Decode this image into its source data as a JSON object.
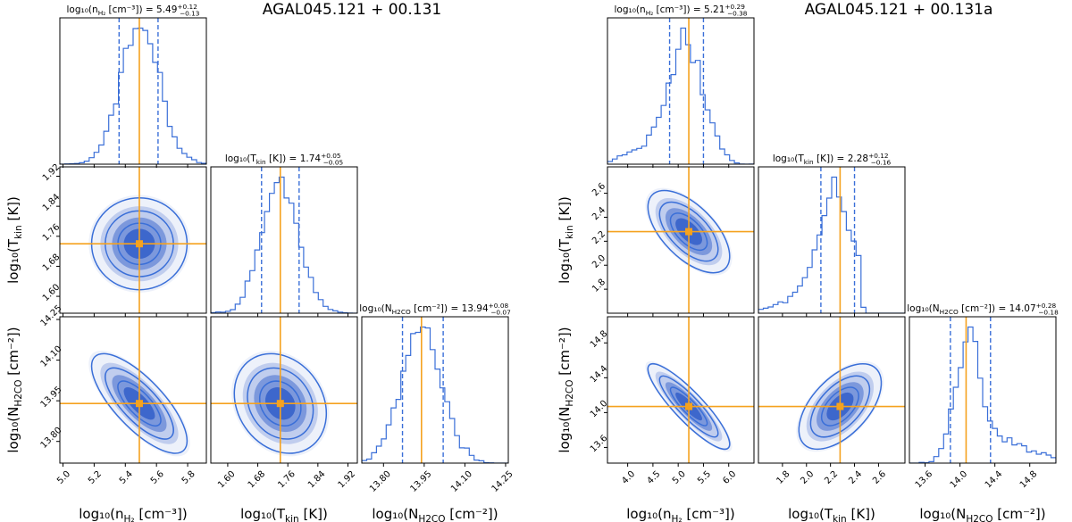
{
  "colors": {
    "hist": "#3a6fd8",
    "truth": "#f5a21f",
    "frame": "#000000",
    "fill_dark": "#1f4fc4"
  },
  "chart_data": [
    {
      "type": "corner",
      "title": "AGAL045.121 + 00.131",
      "params": [
        {
          "name": "log10_n_H2",
          "axis_label": "log₁₀(n_H₂ [cm⁻³])",
          "title": "log₁₀(n_H₂ [cm⁻³]) = 5.49 +0.12 −0.13",
          "title_main": "log₁₀(n",
          "title_sub": "H₂",
          "title_rest": " [cm⁻³]) = 5.49",
          "sup": "+0.12",
          "sub": "−0.13",
          "lab_main": "log₁₀(n",
          "lab_sub": "H₂",
          "lab_rest": " [cm⁻³])",
          "median": 5.49,
          "q16": 5.36,
          "q84": 5.61,
          "sigma": 0.125,
          "range": [
            4.98,
            5.92
          ],
          "ticks": [
            5.0,
            5.2,
            5.4,
            5.6,
            5.8
          ],
          "tick_labels": [
            "5.0",
            "5.2",
            "5.4",
            "5.6",
            "5.8"
          ]
        },
        {
          "name": "log10_T_kin",
          "axis_label": "log₁₀(T_kin [K])",
          "title": "log₁₀(T_kin [K]) = 1.74 +0.05 −0.05",
          "title_main": "log₁₀(T",
          "title_sub": "kin",
          "title_rest": " [K]) = 1.74",
          "sup": "+0.05",
          "sub": "−0.05",
          "lab_main": "log₁₀(T",
          "lab_sub": "kin",
          "lab_rest": " [K])",
          "median": 1.74,
          "q16": 1.69,
          "q84": 1.79,
          "sigma": 0.05,
          "range": [
            1.555,
            1.945
          ],
          "ticks": [
            1.6,
            1.68,
            1.76,
            1.84,
            1.92
          ],
          "tick_labels": [
            "1.60",
            "1.68",
            "1.76",
            "1.84",
            "1.92"
          ]
        },
        {
          "name": "log10_N_H2CO",
          "axis_label": "log₁₀(N_H2CO [cm⁻²])",
          "title": "log₁₀(N_H2CO [cm⁻²]) = 13.94 +0.08 −0.07",
          "title_main": "log₁₀(N",
          "title_sub": "H2CO",
          "title_rest": " [cm⁻²]) = 13.94",
          "sup": "+0.08",
          "sub": "−0.07",
          "lab_main": "log₁₀(N",
          "lab_sub": "H2CO",
          "lab_rest": " [cm⁻²])",
          "median": 13.94,
          "q16": 13.87,
          "q84": 14.02,
          "sigma": 0.075,
          "range": [
            13.72,
            14.26
          ],
          "ticks": [
            13.8,
            13.95,
            14.1,
            14.25
          ],
          "tick_labels": [
            "13.80",
            "13.95",
            "14.10",
            "14.25"
          ]
        }
      ],
      "correlations": {
        "0-1": 0.0,
        "0-2": -0.75,
        "1-2": -0.2
      },
      "truths": [
        5.49,
        1.74,
        13.94
      ]
    },
    {
      "type": "corner",
      "title": "AGAL045.121 + 00.131a",
      "params": [
        {
          "name": "log10_n_H2",
          "axis_label": "log₁₀(n_H₂ [cm⁻³])",
          "title": "log₁₀(n_H₂ [cm⁻³]) = 5.21 +0.29 −0.38",
          "title_main": "log₁₀(n",
          "title_sub": "H₂",
          "title_rest": " [cm⁻³]) = 5.21",
          "sup": "+0.29",
          "sub": "−0.38",
          "lab_main": "log₁₀(n",
          "lab_sub": "H₂",
          "lab_rest": " [cm⁻³])",
          "median": 5.21,
          "q16": 4.83,
          "q84": 5.5,
          "sigma": 0.33,
          "range": [
            3.6,
            6.5
          ],
          "ticks": [
            4.0,
            4.5,
            5.0,
            5.5,
            6.0
          ],
          "tick_labels": [
            "4.0",
            "4.5",
            "5.0",
            "5.5",
            "6.0"
          ]
        },
        {
          "name": "log10_T_kin",
          "axis_label": "log₁₀(T_kin [K])",
          "title": "log₁₀(T_kin [K]) = 2.28 +0.12 −0.16",
          "title_main": "log₁₀(T",
          "title_sub": "kin",
          "title_rest": " [K]) = 2.28",
          "sup": "+0.12",
          "sub": "−0.16",
          "lab_main": "log₁₀(T",
          "lab_sub": "kin",
          "lab_rest": " [K])",
          "median": 2.28,
          "q16": 2.12,
          "q84": 2.4,
          "sigma": 0.14,
          "range": [
            1.6,
            2.82
          ],
          "ticks": [
            1.8,
            2.0,
            2.2,
            2.4,
            2.6
          ],
          "tick_labels": [
            "1.8",
            "2.0",
            "2.2",
            "2.4",
            "2.6"
          ]
        },
        {
          "name": "log10_N_H2CO",
          "axis_label": "log₁₀(N_H2CO [cm⁻²])",
          "title": "log₁₀(N_H2CO [cm⁻²]) = 14.07 +0.28 −0.18",
          "title_main": "log₁₀(N",
          "title_sub": "H2CO",
          "title_rest": " [cm⁻²]) = 14.07",
          "sup": "+0.28",
          "sub": "−0.18",
          "lab_main": "log₁₀(N",
          "lab_sub": "H2CO",
          "lab_rest": " [cm⁻²])",
          "median": 14.07,
          "q16": 13.89,
          "q84": 14.35,
          "sigma": 0.2,
          "range": [
            13.42,
            15.1
          ],
          "ticks": [
            13.6,
            14.0,
            14.4,
            14.8
          ],
          "tick_labels": [
            "13.6",
            "14.0",
            "14.4",
            "14.8"
          ]
        }
      ],
      "correlations": {
        "0-1": -0.6,
        "0-2": -0.88,
        "1-2": 0.55
      },
      "truths": [
        5.21,
        2.28,
        14.07
      ]
    }
  ]
}
